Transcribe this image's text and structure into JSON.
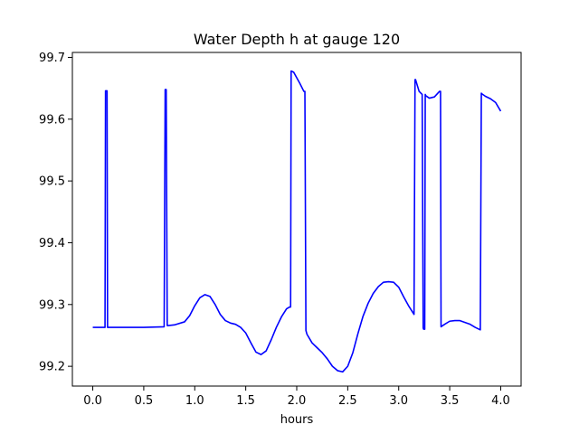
{
  "chart_data": {
    "type": "line",
    "title": "Water Depth h at gauge 120",
    "xlabel": "hours",
    "ylabel": "",
    "xlim": [
      -0.2,
      4.2
    ],
    "ylim": [
      99.168,
      99.708
    ],
    "xticks": [
      0.0,
      0.5,
      1.0,
      1.5,
      2.0,
      2.5,
      3.0,
      3.5,
      4.0
    ],
    "xtick_labels": [
      "0.0",
      "0.5",
      "1.0",
      "1.5",
      "2.0",
      "2.5",
      "3.0",
      "3.5",
      "4.0"
    ],
    "yticks": [
      99.2,
      99.3,
      99.4,
      99.5,
      99.6,
      99.7
    ],
    "ytick_labels": [
      "99.2",
      "99.3",
      "99.4",
      "99.5",
      "99.6",
      "99.7"
    ],
    "grid": false,
    "series": [
      {
        "color": "#0000ff",
        "x": [
          0.0,
          0.12,
          0.125,
          0.14,
          0.145,
          0.3,
          0.5,
          0.7,
          0.71,
          0.72,
          0.73,
          0.74,
          0.8,
          0.9,
          0.95,
          1.0,
          1.05,
          1.1,
          1.15,
          1.2,
          1.25,
          1.3,
          1.35,
          1.4,
          1.45,
          1.5,
          1.55,
          1.6,
          1.65,
          1.7,
          1.75,
          1.8,
          1.85,
          1.9,
          1.93,
          1.94,
          1.945,
          1.97,
          2.0,
          2.03,
          2.07,
          2.08,
          2.09,
          2.1,
          2.15,
          2.2,
          2.25,
          2.3,
          2.35,
          2.4,
          2.45,
          2.5,
          2.55,
          2.6,
          2.65,
          2.7,
          2.75,
          2.8,
          2.85,
          2.9,
          2.95,
          3.0,
          3.05,
          3.1,
          3.15,
          3.16,
          3.165,
          3.2,
          3.23,
          3.24,
          3.245,
          3.255,
          3.26,
          3.265,
          3.3,
          3.35,
          3.4,
          3.41,
          3.415,
          3.45,
          3.5,
          3.55,
          3.6,
          3.65,
          3.7,
          3.75,
          3.8,
          3.81,
          3.815,
          3.85,
          3.9,
          3.95,
          4.0
        ],
        "y": [
          99.263,
          99.263,
          99.646,
          99.646,
          99.263,
          99.263,
          99.263,
          99.264,
          99.648,
          99.648,
          99.266,
          99.266,
          99.267,
          99.272,
          99.282,
          99.298,
          99.311,
          99.316,
          99.313,
          99.3,
          99.284,
          99.274,
          99.27,
          99.268,
          99.263,
          99.254,
          99.238,
          99.223,
          99.219,
          99.225,
          99.243,
          99.263,
          99.28,
          99.293,
          99.296,
          99.296,
          99.678,
          99.676,
          99.667,
          99.658,
          99.645,
          99.645,
          99.258,
          99.252,
          99.238,
          99.23,
          99.222,
          99.212,
          99.2,
          99.193,
          99.191,
          99.2,
          99.222,
          99.253,
          99.281,
          99.302,
          99.318,
          99.329,
          99.336,
          99.337,
          99.336,
          99.328,
          99.312,
          99.297,
          99.284,
          99.664,
          99.664,
          99.645,
          99.64,
          99.262,
          99.26,
          99.26,
          99.64,
          99.638,
          99.634,
          99.636,
          99.645,
          99.645,
          99.264,
          99.268,
          99.273,
          99.274,
          99.274,
          99.271,
          99.268,
          99.263,
          99.259,
          99.642,
          99.641,
          99.637,
          99.633,
          99.627,
          99.613
        ]
      }
    ]
  }
}
